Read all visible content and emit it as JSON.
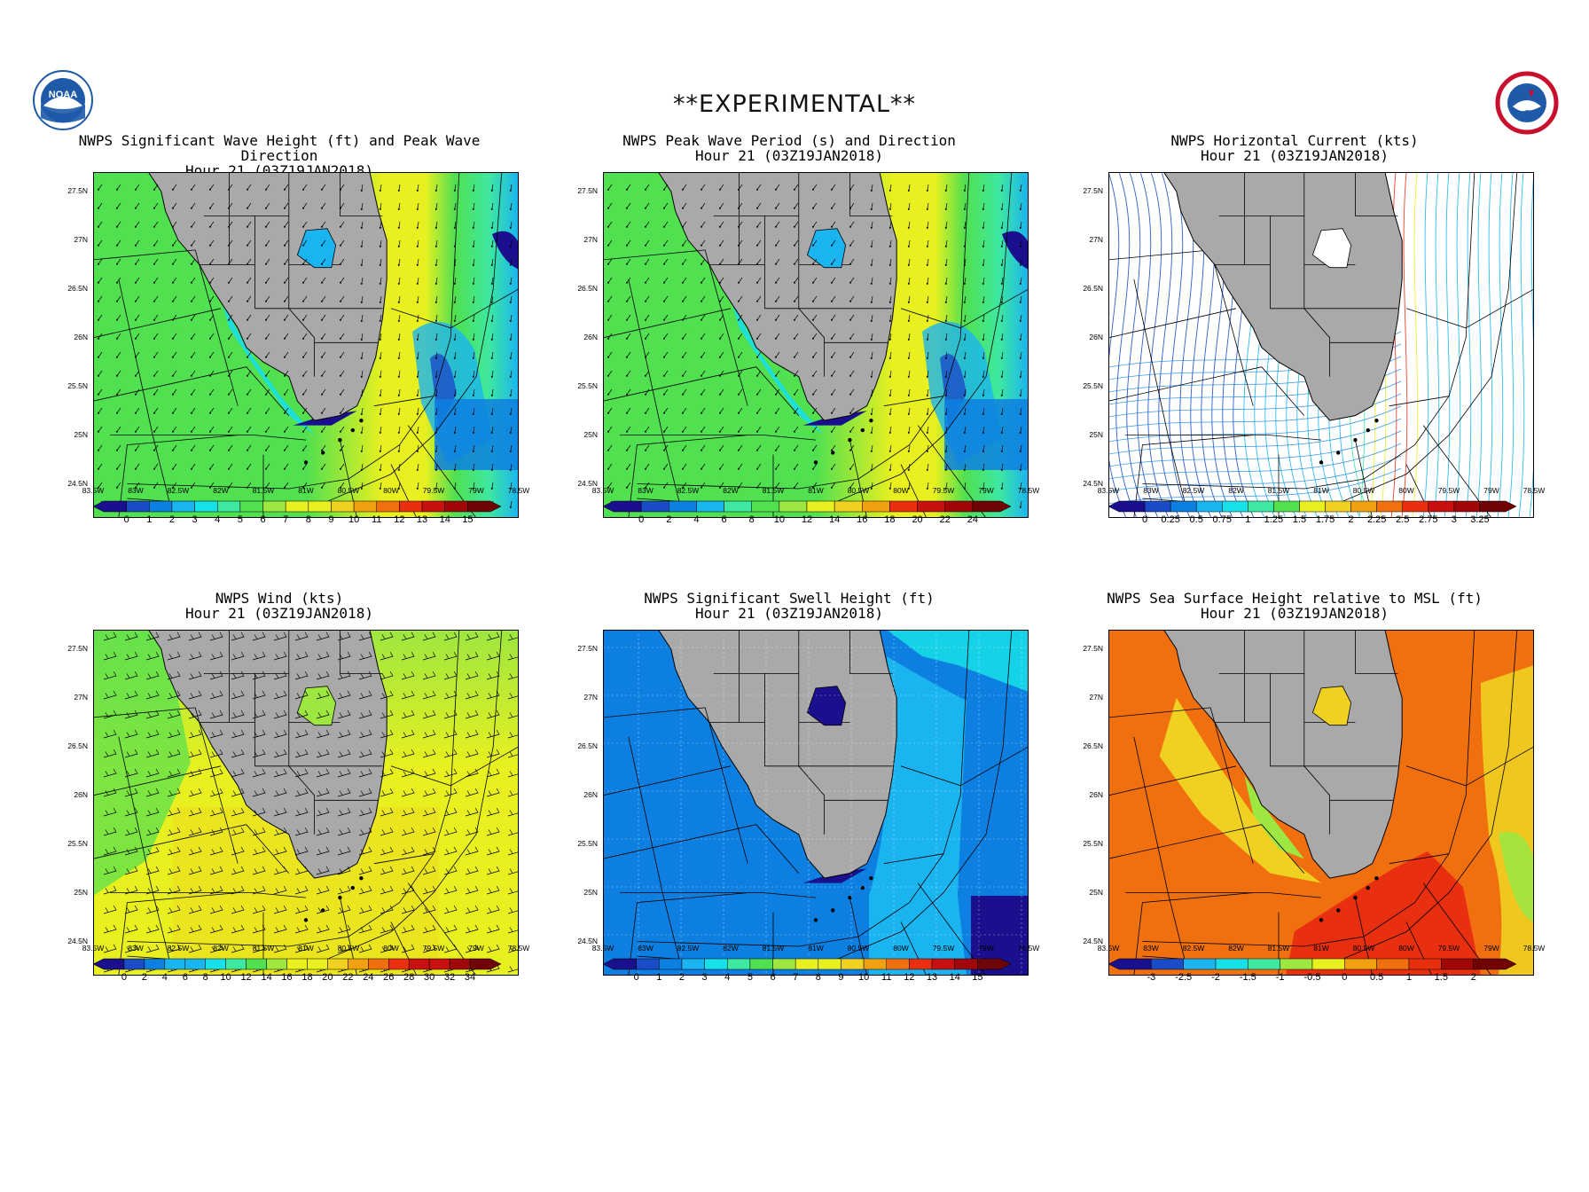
{
  "banner": "**EXPERIMENTAL**",
  "logos": [
    {
      "name": "noaa-logo",
      "text": "NOAA",
      "color": "#1e5aa8"
    },
    {
      "name": "nws-logo",
      "color": "#c8102e"
    }
  ],
  "lat_labels": [
    "27.5N",
    "27N",
    "26.5N",
    "26N",
    "25.5N",
    "25N",
    "24.5N"
  ],
  "lon_labels": [
    "83.5W",
    "83W",
    "82.5W",
    "82W",
    "81.5W",
    "81W",
    "80.5W",
    "80W",
    "79.5W",
    "79W",
    "78.5W"
  ],
  "panels": [
    {
      "id": "wave-height",
      "title1": "NWPS Significant Wave Height (ft) and Peak Wave Direction",
      "title2": "Hour 21 (03Z19JAN2018)",
      "style": "arrows",
      "fill": "waves",
      "colorbar_labels": [
        "0",
        "1",
        "2",
        "3",
        "4",
        "5",
        "6",
        "7",
        "8",
        "9",
        "10",
        "11",
        "12",
        "13",
        "14",
        "15"
      ]
    },
    {
      "id": "wave-period",
      "title1": "NWPS Peak Wave Period (s) and Direction",
      "title2": "Hour 21 (03Z19JAN2018)",
      "style": "arrows",
      "fill": "period",
      "colorbar_labels": [
        "0",
        "2",
        "4",
        "6",
        "8",
        "10",
        "12",
        "14",
        "16",
        "18",
        "20",
        "22",
        "24"
      ]
    },
    {
      "id": "current",
      "title1": "NWPS Horizontal Current (kts)",
      "title2": "Hour 21 (03Z19JAN2018)",
      "style": "streamlines",
      "fill": "current",
      "colorbar_labels": [
        "0",
        "0.25",
        "0.5",
        "0.75",
        "1",
        "1.25",
        "1.5",
        "1.75",
        "2",
        "2.25",
        "2.5",
        "2.75",
        "3",
        "3.25"
      ]
    },
    {
      "id": "wind",
      "title1": "NWPS Wind (kts)",
      "title2": "Hour 21 (03Z19JAN2018)",
      "style": "barbs",
      "fill": "wind",
      "colorbar_labels": [
        "0",
        "2",
        "4",
        "6",
        "8",
        "10",
        "12",
        "14",
        "16",
        "18",
        "20",
        "22",
        "24",
        "26",
        "28",
        "30",
        "32",
        "34"
      ]
    },
    {
      "id": "swell",
      "title1": "NWPS Significant Swell Height (ft)",
      "title2": "Hour 21 (03Z19JAN2018)",
      "style": "grid",
      "fill": "swell",
      "colorbar_labels": [
        "0",
        "1",
        "2",
        "3",
        "4",
        "5",
        "6",
        "7",
        "8",
        "9",
        "10",
        "11",
        "12",
        "13",
        "14",
        "15"
      ]
    },
    {
      "id": "ssh",
      "title1": "NWPS Sea Surface Height relative to MSL (ft)",
      "title2": "Hour 21 (03Z19JAN2018)",
      "style": "none",
      "fill": "ssh",
      "colorbar_labels": [
        "-3",
        "-2.5",
        "-2",
        "-1.5",
        "-1",
        "-0.5",
        "0",
        "0.5",
        "1",
        "1.5",
        "2"
      ]
    }
  ],
  "colors": {
    "land": "#a9a9a9",
    "palette": [
      "#1a0f8c",
      "#1a4cc8",
      "#0d7fe0",
      "#1ab4f0",
      "#18e0e8",
      "#3ee8a0",
      "#50e050",
      "#9ee640",
      "#e8f020",
      "#f0d020",
      "#f0a010",
      "#f07010",
      "#e83010",
      "#c81010",
      "#a00808",
      "#700404"
    ]
  }
}
